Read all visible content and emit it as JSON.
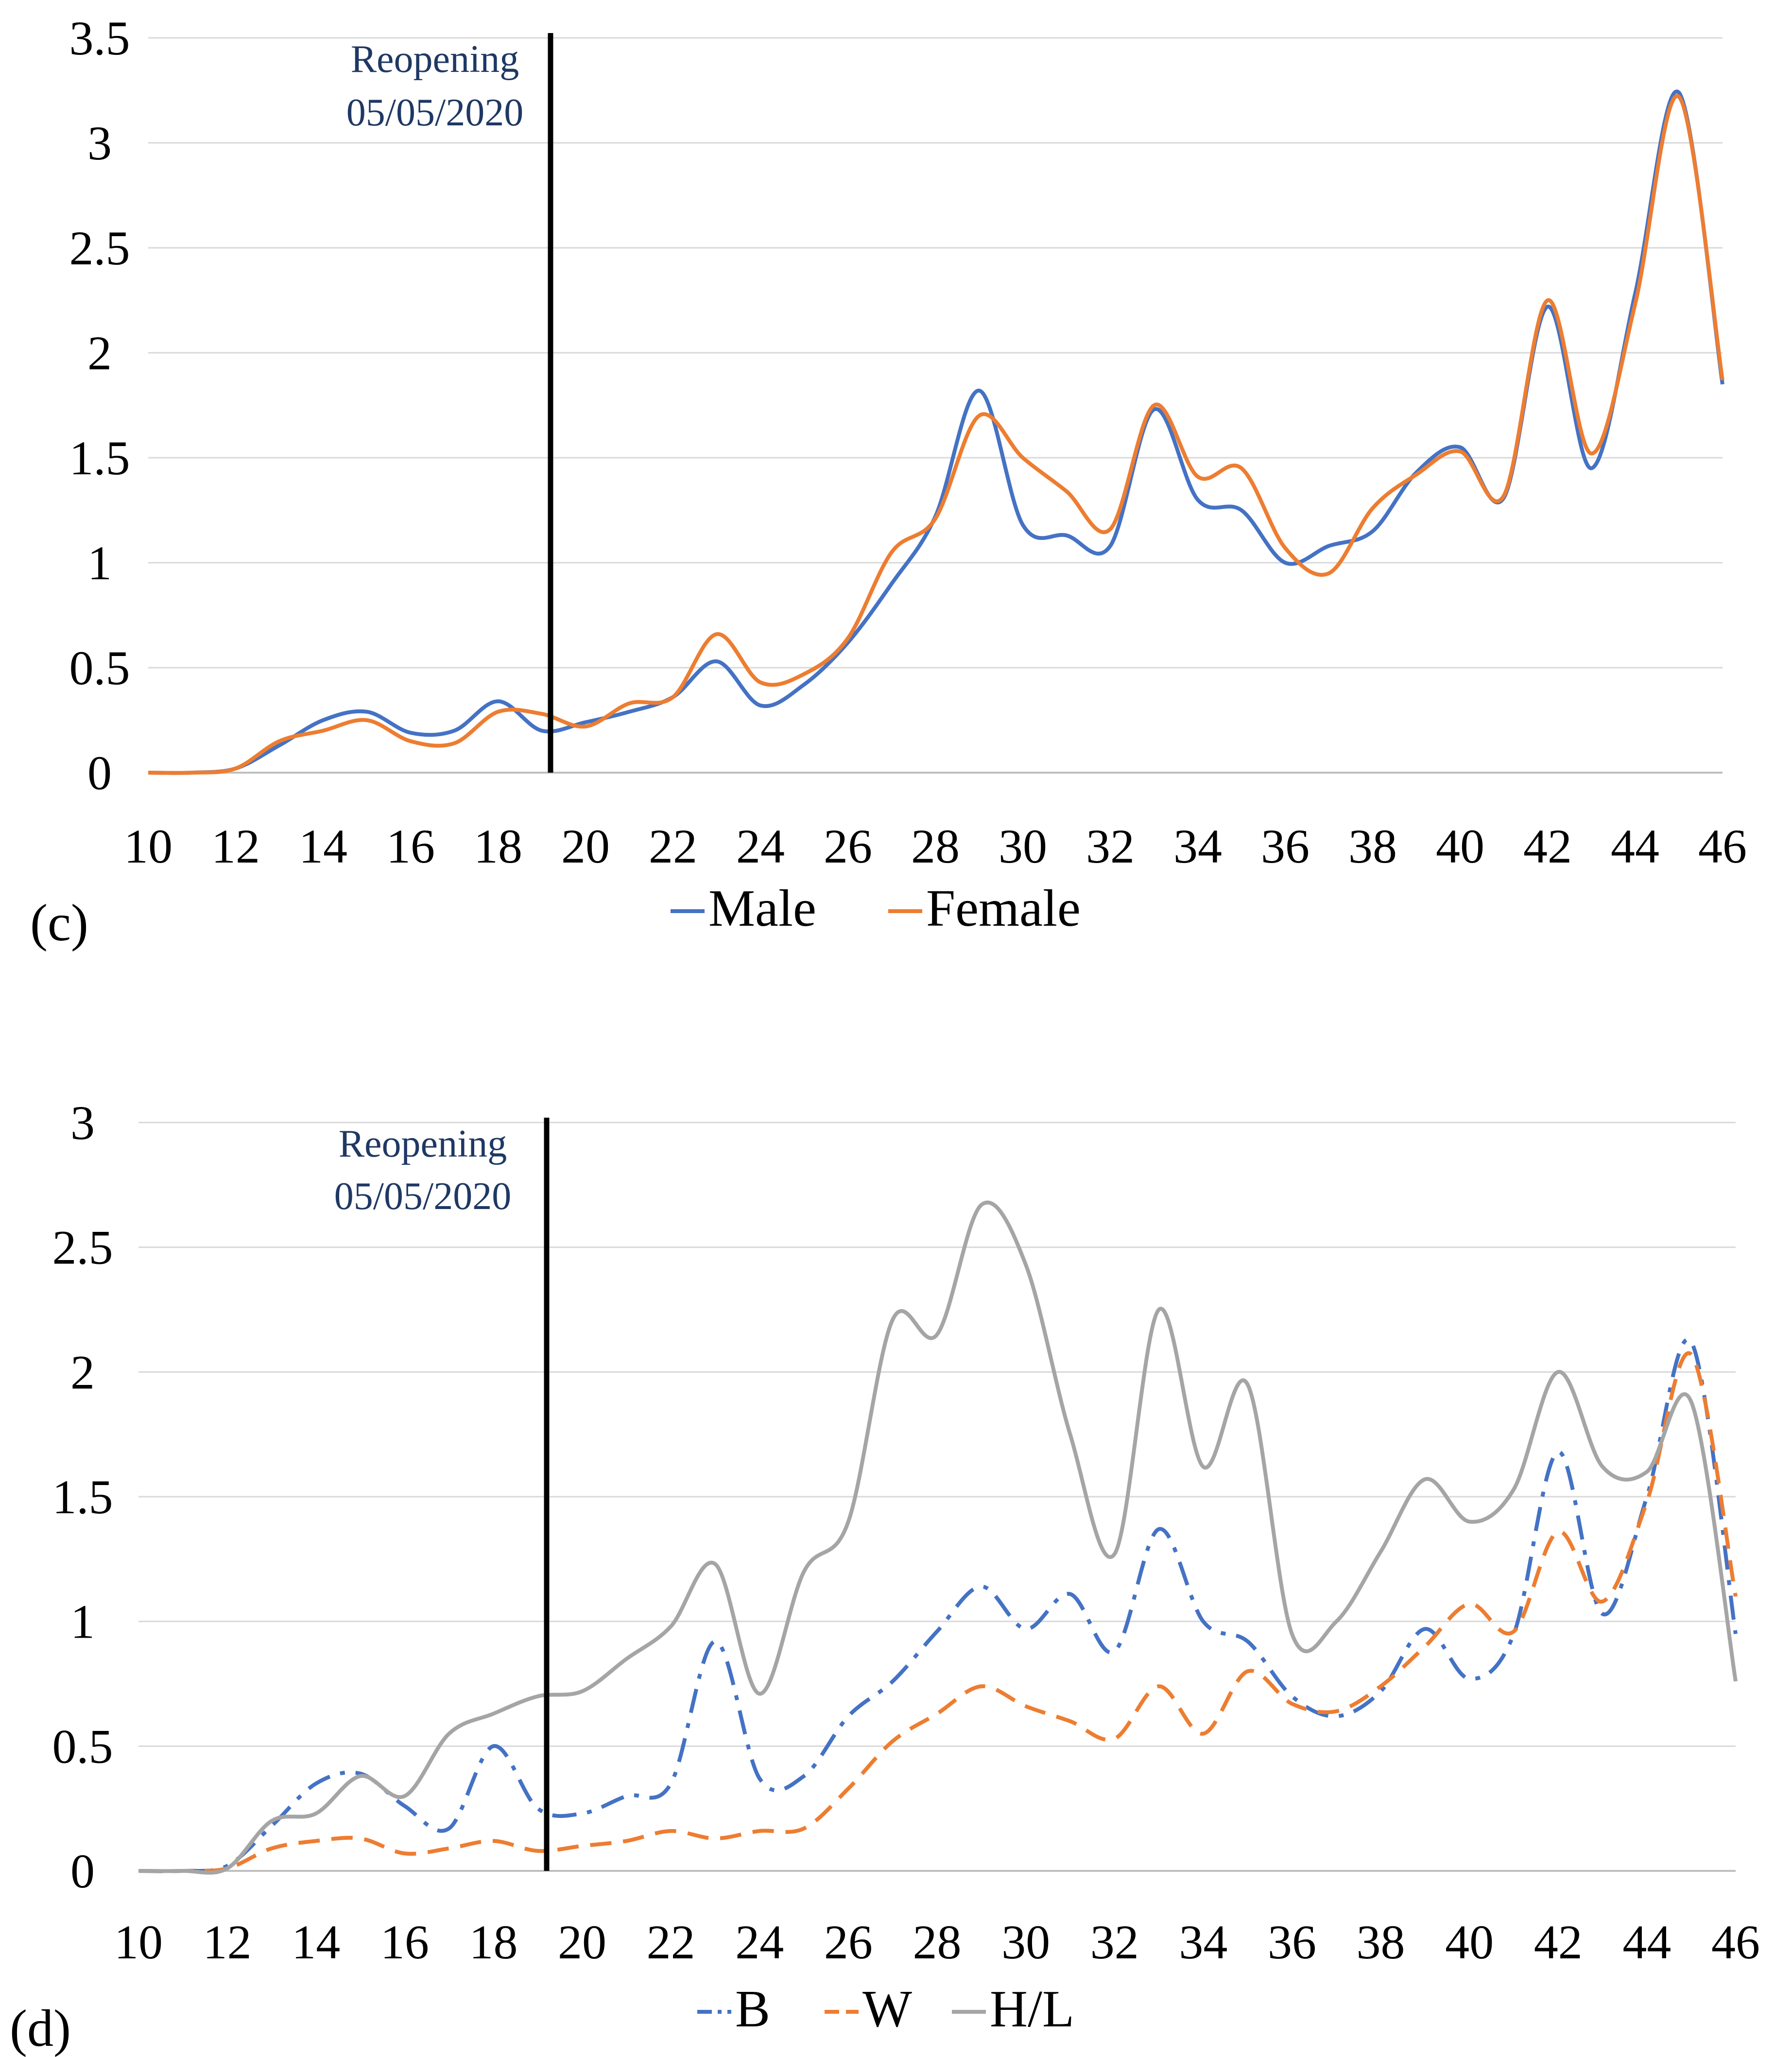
{
  "chart_data": [
    {
      "type": "line",
      "panel_label": "(c)",
      "x": [
        10,
        11,
        12,
        13,
        14,
        15,
        16,
        17,
        18,
        19,
        20,
        21,
        22,
        23,
        24,
        25,
        26,
        27,
        28,
        29,
        30,
        31,
        32,
        33,
        34,
        35,
        36,
        37,
        38,
        39,
        40,
        41,
        42,
        43,
        44,
        45,
        46
      ],
      "x_tick_labels": [
        "10",
        "12",
        "14",
        "16",
        "18",
        "20",
        "22",
        "24",
        "26",
        "28",
        "30",
        "32",
        "34",
        "36",
        "38",
        "40",
        "42",
        "44",
        "46"
      ],
      "y_tick_labels": [
        "0",
        "0.5",
        "1",
        "1.5",
        "2",
        "2.5",
        "3",
        "3.5"
      ],
      "ylim": [
        0,
        3.5
      ],
      "grid": true,
      "legend_position": "bottom",
      "series": [
        {
          "name": "Male",
          "color": "#4472c4",
          "dash": "solid",
          "values": [
            0,
            0,
            0.02,
            0.13,
            0.25,
            0.29,
            0.19,
            0.2,
            0.34,
            0.2,
            0.24,
            0.29,
            0.36,
            0.53,
            0.32,
            0.42,
            0.62,
            0.9,
            1.22,
            1.82,
            1.18,
            1.13,
            1.08,
            1.73,
            1.3,
            1.25,
            1.0,
            1.08,
            1.15,
            1.43,
            1.55,
            1.31,
            2.22,
            1.45,
            2.28,
            3.24,
            1.85
          ]
        },
        {
          "name": "Female",
          "color": "#ed7d31",
          "dash": "solid",
          "values": [
            0,
            0,
            0.02,
            0.15,
            0.2,
            0.25,
            0.15,
            0.14,
            0.29,
            0.28,
            0.22,
            0.33,
            0.36,
            0.66,
            0.43,
            0.47,
            0.64,
            1.05,
            1.21,
            1.7,
            1.5,
            1.34,
            1.16,
            1.75,
            1.41,
            1.45,
            1.07,
            0.95,
            1.26,
            1.42,
            1.53,
            1.32,
            2.25,
            1.52,
            2.23,
            3.22,
            1.87
          ]
        }
      ],
      "annotations": [
        {
          "x": 19.2,
          "line1": "Reopening",
          "line2": "05/05/2020"
        }
      ]
    },
    {
      "type": "line",
      "panel_label": "(d)",
      "x": [
        10,
        11,
        12,
        13,
        14,
        15,
        16,
        17,
        18,
        19,
        20,
        21,
        22,
        23,
        24,
        25,
        26,
        27,
        28,
        29,
        30,
        31,
        32,
        33,
        34,
        35,
        36,
        37,
        38,
        39,
        40,
        41,
        42,
        43,
        44,
        45,
        46
      ],
      "x_tick_labels": [
        "10",
        "12",
        "14",
        "16",
        "18",
        "20",
        "22",
        "24",
        "26",
        "28",
        "30",
        "32",
        "34",
        "36",
        "38",
        "40",
        "42",
        "44",
        "46"
      ],
      "y_tick_labels": [
        "0",
        "0.5",
        "1",
        "1.5",
        "2",
        "2.5",
        "3"
      ],
      "ylim": [
        0,
        3
      ],
      "grid": true,
      "legend_position": "bottom",
      "series": [
        {
          "name": "B",
          "color": "#4472c4",
          "dash": "dashdot",
          "values": [
            0,
            0,
            0.02,
            0.18,
            0.35,
            0.39,
            0.26,
            0.17,
            0.5,
            0.25,
            0.23,
            0.3,
            0.35,
            0.92,
            0.37,
            0.38,
            0.62,
            0.76,
            0.96,
            1.14,
            0.97,
            1.11,
            0.88,
            1.37,
            1.0,
            0.92,
            0.7,
            0.62,
            0.72,
            0.97,
            0.77,
            0.95,
            1.68,
            1.03,
            1.5,
            2.12,
            0.95
          ]
        },
        {
          "name": "W",
          "color": "#ed7d31",
          "dash": "dash",
          "values": [
            0,
            0,
            0.01,
            0.09,
            0.12,
            0.13,
            0.07,
            0.09,
            0.12,
            0.08,
            0.1,
            0.12,
            0.16,
            0.13,
            0.16,
            0.17,
            0.33,
            0.52,
            0.63,
            0.74,
            0.66,
            0.6,
            0.53,
            0.74,
            0.55,
            0.8,
            0.67,
            0.64,
            0.74,
            0.9,
            1.07,
            0.96,
            1.36,
            1.08,
            1.48,
            2.07,
            1.1
          ]
        },
        {
          "name": "H/L",
          "color": "#a5a5a5",
          "dash": "solid",
          "values": [
            0,
            0,
            0.01,
            0.2,
            0.23,
            0.38,
            0.3,
            0.55,
            0.63,
            0.7,
            0.72,
            0.85,
            0.98,
            1.23,
            0.71,
            1.2,
            1.4,
            2.21,
            2.15,
            2.67,
            2.43,
            1.75,
            1.27,
            2.25,
            1.62,
            1.95,
            0.95,
            1.0,
            1.28,
            1.57,
            1.4,
            1.53,
            2.0,
            1.62,
            1.6,
            1.88,
            0.76
          ]
        }
      ],
      "annotations": [
        {
          "x": 19.2,
          "line1": "Reopening",
          "line2": "05/05/2020"
        }
      ]
    }
  ]
}
